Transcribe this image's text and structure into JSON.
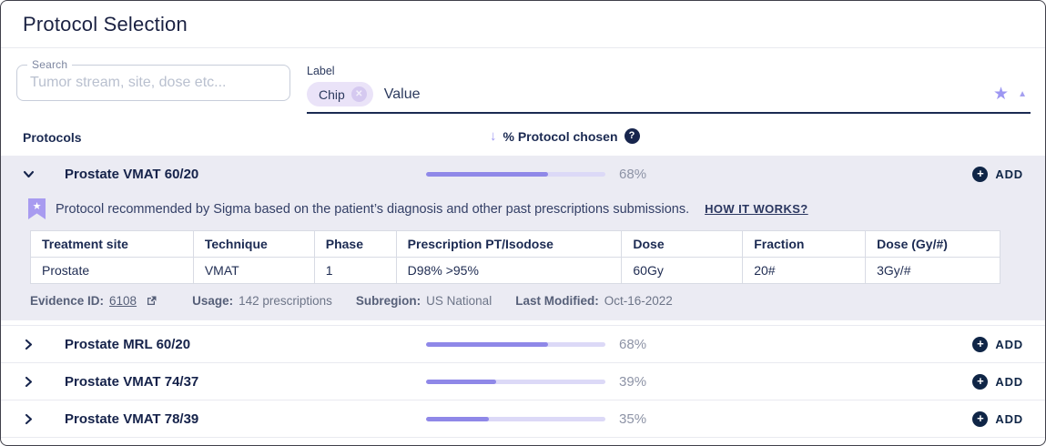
{
  "page": {
    "title": "Protocol Selection"
  },
  "filters": {
    "search": {
      "label": "Search",
      "placeholder": "Tumor stream, site, dose etc..."
    },
    "label_select": {
      "label": "Label",
      "chip": "Chip",
      "value": "Value"
    }
  },
  "list": {
    "header_left": "Protocols",
    "header_right": "% Protocol chosen",
    "add_label": "ADD"
  },
  "protocols": [
    {
      "name": "Prostate VMAT 60/20",
      "percent": 68,
      "state": "expanded"
    },
    {
      "name": "Prostate MRL 60/20",
      "percent": 68,
      "state": "collapsed"
    },
    {
      "name": "Prostate VMAT 74/37",
      "percent": 39,
      "state": "collapsed"
    },
    {
      "name": "Prostate VMAT 78/39",
      "percent": 35,
      "state": "collapsed"
    }
  ],
  "recommendation": {
    "message": "Protocol recommended by Sigma based on the patient’s diagnosis and other past prescriptions submissions.",
    "link_label": "HOW IT WORKS?"
  },
  "protocol_table": {
    "columns": [
      "Treatment site",
      "Technique",
      "Phase",
      "Prescription PT/Isodose",
      "Dose",
      "Fraction",
      "Dose (Gy/#)"
    ],
    "rows": [
      [
        "Prostate",
        "VMAT",
        "1",
        "D98% >95%",
        "60Gy",
        "20#",
        "3Gy/#"
      ]
    ]
  },
  "details": {
    "evidence_label": "Evidence ID:",
    "evidence_value": "6108",
    "usage_label": "Usage:",
    "usage_value": "142 prescriptions",
    "subregion_label": "Subregion:",
    "subregion_value": "US National",
    "modified_label": "Last Modified:",
    "modified_value": "Oct-16-2022"
  },
  "colors": {
    "accent_purple": "#8f88e8",
    "track_purple": "#dcd9f7",
    "navy": "#17254d",
    "panel_bg": "#ebebf3"
  }
}
